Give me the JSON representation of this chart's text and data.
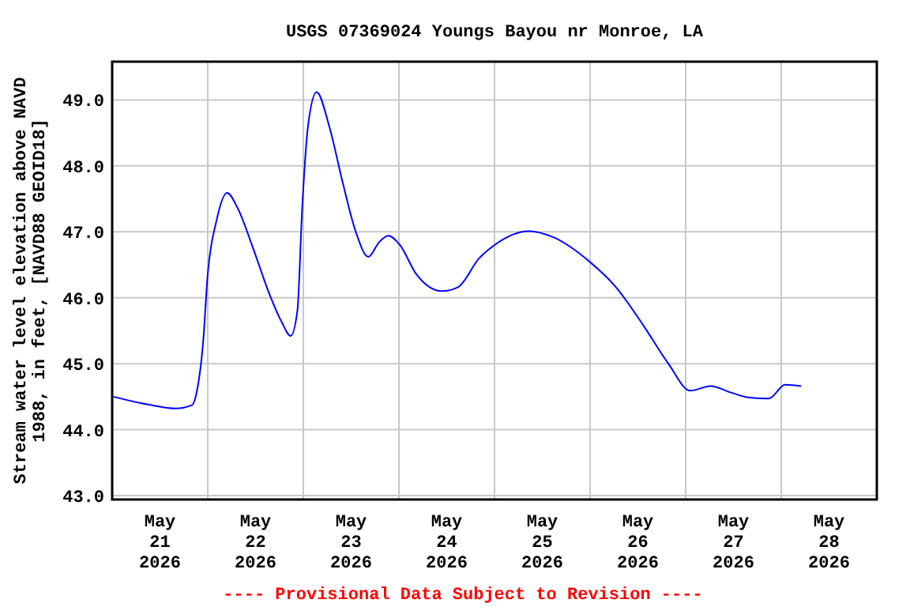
{
  "chart_data": {
    "type": "line",
    "title": "USGS 07369024 Youngs Bayou nr Monroe, LA",
    "ylabel": "Stream water level elevation above NAVD\n1988, in feet, [NAVD88 GEOID18]",
    "annotations": [
      "---- Provisional Data Subject to Revision ----"
    ],
    "xlim": [
      "2026-05-21",
      "2026-05-29"
    ],
    "xticks": [
      {
        "value": "2026-05-21T12:00",
        "label": "May\n21\n2026"
      },
      {
        "value": "2026-05-22T12:00",
        "label": "May\n22\n2026"
      },
      {
        "value": "2026-05-23T12:00",
        "label": "May\n23\n2026"
      },
      {
        "value": "2026-05-24T12:00",
        "label": "May\n24\n2026"
      },
      {
        "value": "2026-05-25T12:00",
        "label": "May\n25\n2026"
      },
      {
        "value": "2026-05-26T12:00",
        "label": "May\n26\n2026"
      },
      {
        "value": "2026-05-27T12:00",
        "label": "May\n27\n2026"
      },
      {
        "value": "2026-05-28T12:00",
        "label": "May\n28\n2026"
      },
      {
        "value": "2026-05-22",
        "label": null
      },
      {
        "value": "2026-05-23",
        "label": null
      },
      {
        "value": "2026-05-24",
        "label": null
      },
      {
        "value": "2026-05-25",
        "label": null
      },
      {
        "value": "2026-05-26",
        "label": null
      },
      {
        "value": "2026-05-27",
        "label": null
      },
      {
        "value": "2026-05-28",
        "label": null
      }
    ],
    "ylim": [
      42.94,
      49.58
    ],
    "yticks": [
      {
        "value": 43,
        "label": "43.0"
      },
      {
        "value": 44,
        "label": "44.0"
      },
      {
        "value": 45,
        "label": "45.0"
      },
      {
        "value": 46,
        "label": "46.0"
      },
      {
        "value": 47,
        "label": "47.0"
      },
      {
        "value": 48,
        "label": "48.0"
      },
      {
        "value": 49,
        "label": "49.0"
      }
    ],
    "grid": true,
    "series": [
      {
        "color": "#0000ff",
        "x": [
          "2026-05-21T00:15",
          "2026-05-21T09:00",
          "2026-05-21T16:00",
          "2026-05-21T20:00",
          "2026-05-21T21:20",
          "2026-05-21T22:50",
          "2026-05-22T00:00",
          "2026-05-22T02:10",
          "2026-05-22T04:50",
          "2026-05-22T07:30",
          "2026-05-22T11:20",
          "2026-05-22T15:20",
          "2026-05-22T18:30",
          "2026-05-22T20:50",
          "2026-05-22T22:30",
          "2026-05-22T23:45",
          "2026-05-23T01:10",
          "2026-05-23T03:20",
          "2026-05-23T06:30",
          "2026-05-23T09:50",
          "2026-05-23T13:10",
          "2026-05-23T16:20",
          "2026-05-23T19:00",
          "2026-05-23T21:20",
          "2026-05-24T00:15",
          "2026-05-24T04:20",
          "2026-05-24T10:50",
          "2026-05-24T14:50",
          "2026-05-24T20:10",
          "2026-05-25T00:00",
          "2026-05-25T08:40",
          "2026-05-25T14:40",
          "2026-05-26T00:00",
          "2026-05-26T06:30",
          "2026-05-26T13:10",
          "2026-05-26T19:40",
          "2026-05-27T01:10",
          "2026-05-27T06:15",
          "2026-05-27T11:30",
          "2026-05-27T15:35",
          "2026-05-27T20:50",
          "2026-05-28T01:00",
          "2026-05-28T05:00"
        ],
        "values": [
          44.5,
          44.38,
          44.32,
          44.37,
          44.6,
          45.32,
          46.36,
          47.16,
          47.59,
          47.36,
          46.76,
          46.08,
          45.64,
          45.42,
          45.8,
          47.4,
          48.6,
          49.12,
          48.6,
          47.76,
          47.0,
          46.62,
          46.84,
          46.94,
          46.8,
          46.36,
          46.1,
          46.16,
          46.6,
          46.8,
          47.01,
          46.92,
          46.54,
          46.16,
          45.6,
          45.0,
          44.59,
          44.66,
          44.56,
          44.49,
          44.47,
          44.68,
          44.66
        ]
      }
    ]
  }
}
